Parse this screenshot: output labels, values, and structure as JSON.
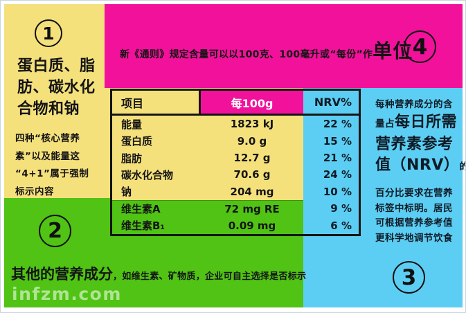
{
  "colors": {
    "yellow": "#F5E17C",
    "magenta": "#F2119B",
    "cyan": "#5DCEF3",
    "green": "#50C314",
    "table_border": "#141414",
    "nrv_text": "#0E1B26",
    "frame_border": "#C9D4DE"
  },
  "badges": {
    "b1": "1",
    "b2": "2",
    "b3": "3",
    "b4": "4"
  },
  "region_core": {
    "title_lines": [
      "蛋白质、脂",
      "肪、碳水化",
      "合物和钠"
    ],
    "note_lines": [
      "四种“核心营养",
      "素”以及能量这",
      "“4+1”属于强制",
      "标示内容"
    ]
  },
  "region_unit": {
    "text": "新《通则》规定含量可以以100克、100毫升或“每份”作",
    "emphasis": "单位"
  },
  "region_nrv": {
    "line1": "每种营养成分的含",
    "line2_small": "量占",
    "line2_big": "每日所需",
    "line3_big": "营养素参考",
    "line4_big": "值（NRV）",
    "line4_small": "的",
    "tail_lines": [
      "百分比要求在营养",
      "标签中标明。居民",
      "可根据营养参考值",
      "更科学地调节饮食"
    ]
  },
  "region_other": {
    "title": "其他的营养成分",
    "note": "，如维生素、矿物质，企业可自主选择是否标示"
  },
  "watermark": "infzm.com",
  "table": {
    "headers": [
      "项目",
      "每100g",
      "NRV%"
    ],
    "rows": [
      {
        "label": "能量",
        "value": "1823 kJ",
        "nrv": "22 %",
        "group": "core"
      },
      {
        "label": "蛋白质",
        "value": "9.0 g",
        "nrv": "15 %",
        "group": "core"
      },
      {
        "label": "脂肪",
        "value": "12.7 g",
        "nrv": "21 %",
        "group": "core"
      },
      {
        "label": "碳水化合物",
        "value": "70.6 g",
        "nrv": "24 %",
        "group": "core"
      },
      {
        "label": "钠",
        "value": "204 mg",
        "nrv": "10 %",
        "group": "core"
      },
      {
        "label": "维生素A",
        "value": "72 mg RE",
        "nrv": "9 %",
        "group": "optional"
      },
      {
        "label": "维生素B₁",
        "value": "0.09 mg",
        "nrv": "6 %",
        "group": "optional"
      }
    ]
  }
}
